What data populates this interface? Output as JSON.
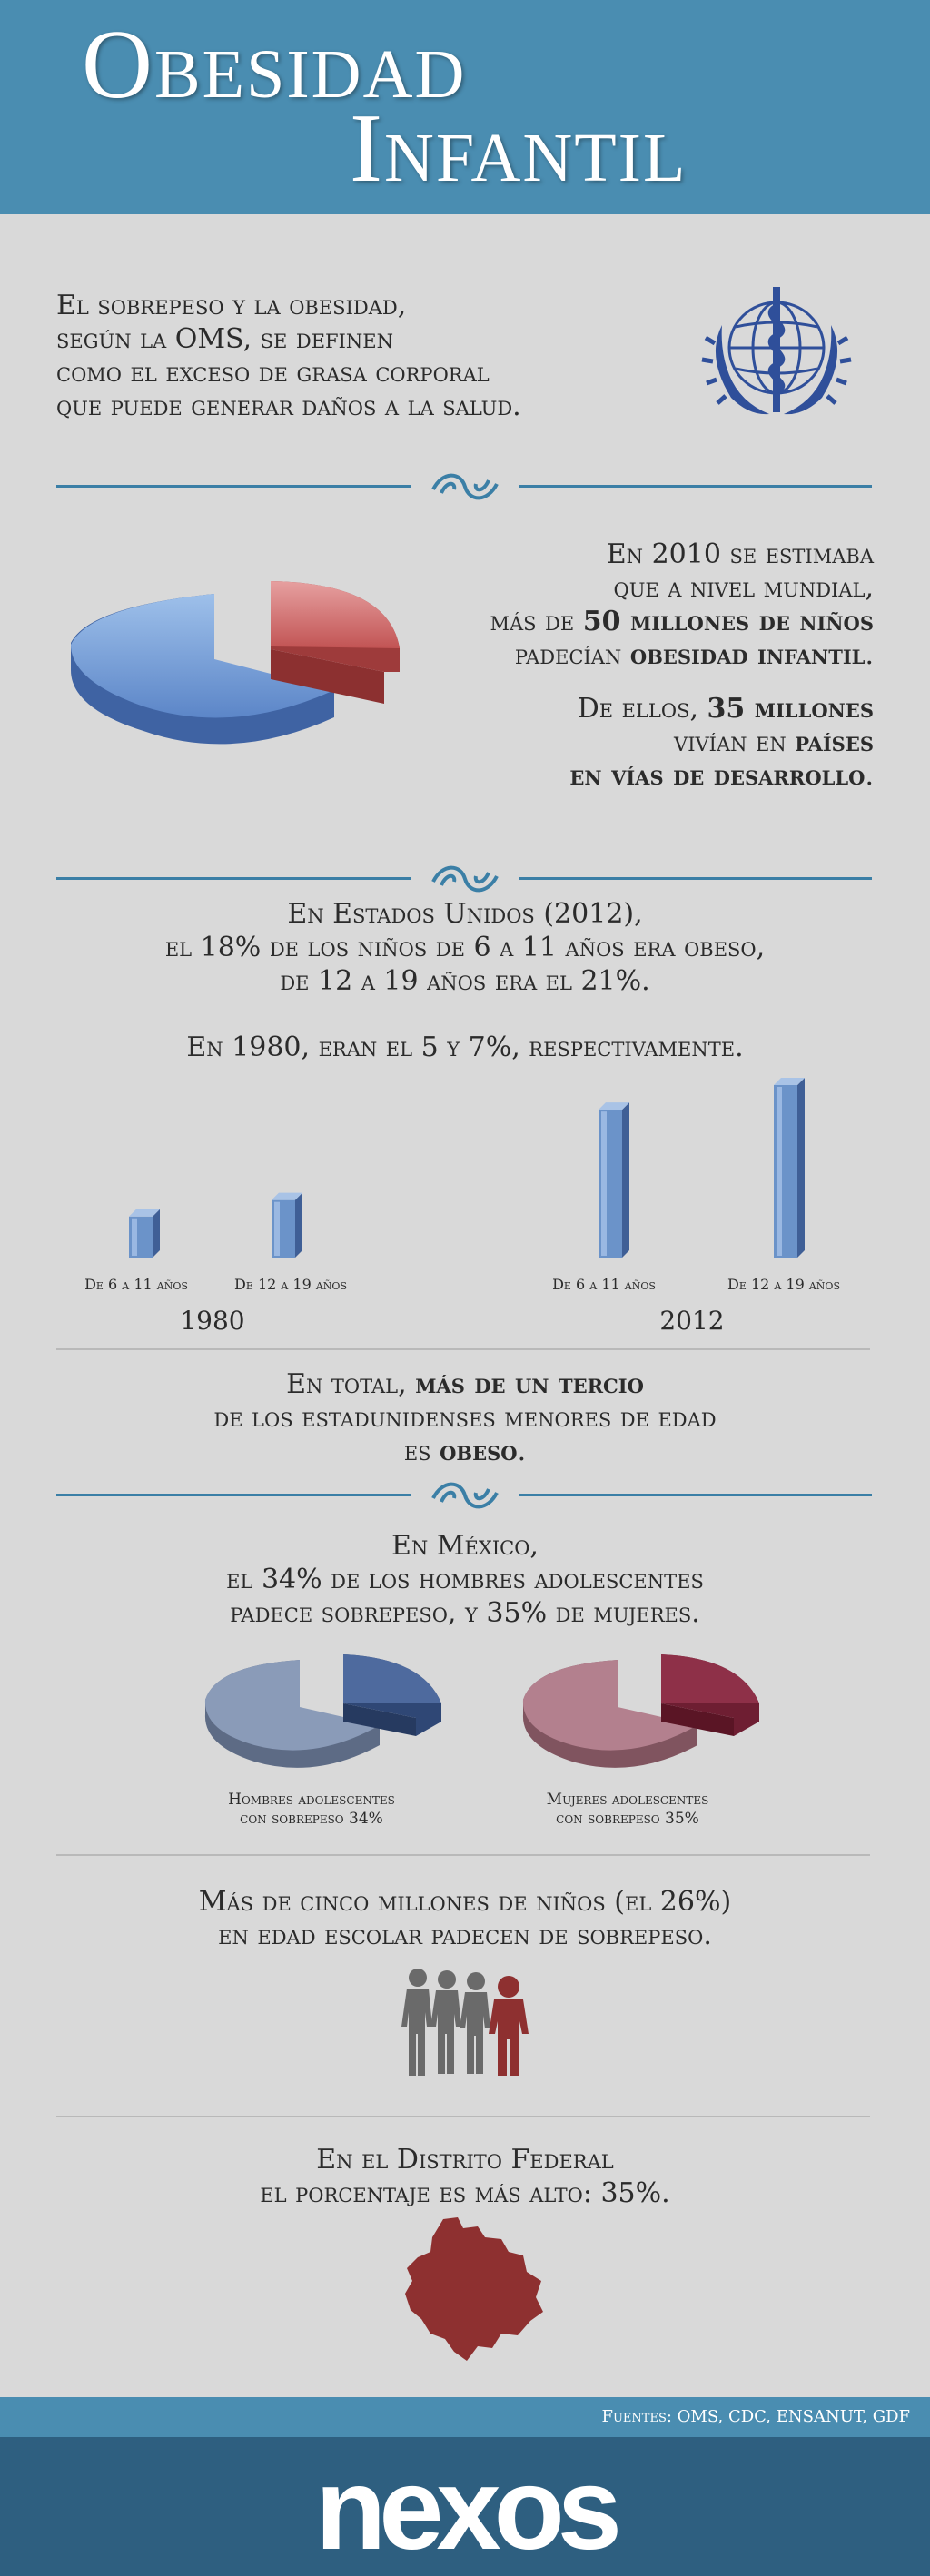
{
  "header": {
    "title_line1": "Obesidad",
    "title_line2": "Infantil"
  },
  "intro": {
    "lines": [
      "El sobrepeso y la obesidad,",
      "según la OMS, se definen",
      "como el exceso de grasa corporal",
      "que puede generar daños a la salud."
    ]
  },
  "world": {
    "l1": "En 2010 se estimaba",
    "l2": "que a nivel mundial,",
    "l3a": "más de ",
    "l3b": "50 millones de niños",
    "l4a": "padecían ",
    "l4b": "obesidad infantil",
    "l5a": "De ellos, ",
    "l5b": "35 millones",
    "l6a": "vivían en ",
    "l6b": "países",
    "l7": "en vías de desarrollo"
  },
  "usa": {
    "lines": [
      "En Estados Unidos (2012),",
      "el 18% de los niños de 6 a 11 años era obeso,",
      "de 12 a 19 años era el 21%."
    ],
    "line1980": "En 1980, eran el 5 y 7%, respectivamente."
  },
  "chart_data": {
    "type": "bar",
    "groups": [
      "1980",
      "2012"
    ],
    "categories": [
      "De 6 a 11 años",
      "De 12 a 19 años"
    ],
    "series": [
      {
        "name": "1980",
        "values": [
          5,
          7
        ]
      },
      {
        "name": "2012",
        "values": [
          18,
          21
        ]
      }
    ],
    "ylim": [
      0,
      21
    ],
    "bar_color": "#6b93c9"
  },
  "usa_total": {
    "l1a": "En total, ",
    "l1b": "más de un tercio",
    "l2": "de los estadunidenses menores de edad",
    "l3a": "es ",
    "l3b": "obeso"
  },
  "mexico": {
    "lines": [
      "En México,",
      "el 34% de los hombres adolescentes",
      "padece sobrepeso, y 35% de mujeres."
    ],
    "pie_men": {
      "line1": "Hombres adolescentes",
      "line2": "con sobrepeso 34%",
      "value": 34,
      "color_main": "#8a9bb8",
      "color_slice": "#4e6a9e"
    },
    "pie_women": {
      "line1": "Mujeres adolescentes",
      "line2": "con sobrepeso 35%",
      "value": 35,
      "color_main": "#b3808e",
      "color_slice": "#8e3048"
    }
  },
  "school": {
    "lines": [
      "Más de cinco millones de niños (el 26%)",
      "en edad escolar padecen de sobrepeso."
    ],
    "value": 26
  },
  "df": {
    "lines": [
      "En el Distrito Federal",
      "el porcentaje es más alto: 35%."
    ],
    "value": 35
  },
  "footer": {
    "sources": "Fuentes: OMS, CDC, ENSANUT, GDF",
    "logo": "nexos"
  },
  "colors": {
    "header": "#4a8db1",
    "divider": "#3b7fa6",
    "footer_dark": "#2e5f80",
    "accent_red": "#8e3030"
  }
}
